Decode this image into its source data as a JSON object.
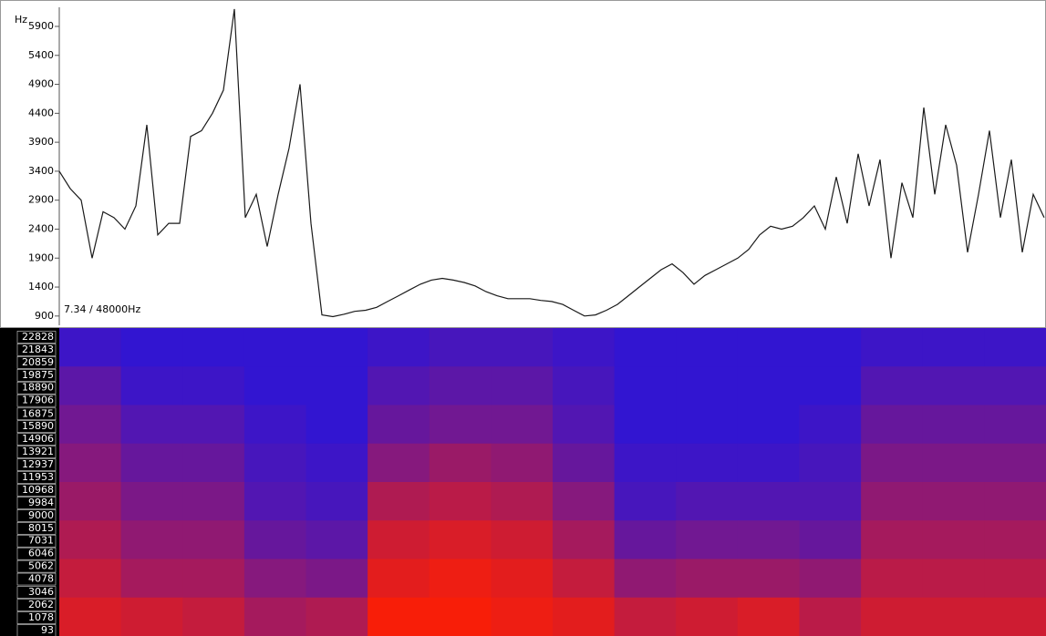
{
  "chart_data": [
    {
      "type": "line",
      "y_label": "Hz",
      "annotation": "7.34 / 48000Hz",
      "color": "#1a1a1a",
      "categories": [
        null,
        null,
        null,
        null,
        null,
        null,
        null,
        null,
        null,
        null,
        null,
        null,
        null,
        null,
        null,
        null,
        null,
        null,
        null,
        null,
        null,
        null,
        null,
        null,
        null,
        null,
        null,
        null,
        null,
        null,
        null,
        null,
        null,
        null,
        null,
        null,
        null,
        null,
        null,
        null,
        null,
        null,
        null,
        null,
        null,
        null,
        null,
        null,
        null,
        null,
        null,
        null,
        null,
        null,
        null,
        null,
        null,
        null,
        null,
        null,
        null,
        null,
        null,
        null,
        null,
        null,
        null,
        null,
        null,
        null,
        null,
        null,
        null,
        null,
        null,
        null,
        null,
        null,
        null,
        null,
        null,
        null,
        null,
        null,
        null,
        null,
        null,
        null,
        null,
        null,
        null
      ],
      "values": [
        3400,
        3100,
        2900,
        1900,
        2700,
        2600,
        2400,
        2800,
        4200,
        2300,
        2500,
        2500,
        4000,
        4100,
        4400,
        4800,
        6200,
        2600,
        3000,
        2100,
        3000,
        3800,
        4900,
        2500,
        920,
        890,
        930,
        980,
        1000,
        1050,
        1150,
        1250,
        1350,
        1450,
        1520,
        1550,
        1520,
        1480,
        1420,
        1320,
        1250,
        1200,
        1200,
        1200,
        1170,
        1150,
        1100,
        1000,
        900,
        920,
        1000,
        1100,
        1250,
        1400,
        1550,
        1700,
        1800,
        1650,
        1450,
        1600,
        1700,
        1800,
        1900,
        2050,
        2300,
        2450,
        2400,
        2450,
        2600,
        2800,
        2400,
        3300,
        2500,
        3700,
        2800,
        3600,
        1900,
        3200,
        2600,
        4500,
        3000,
        4200,
        3500,
        2000,
        3000,
        4100,
        2600,
        3600,
        2000,
        3000,
        2600
      ],
      "ylim": [
        740,
        6230
      ],
      "yticks": [
        900,
        1400,
        1900,
        2400,
        2900,
        3400,
        3900,
        4400,
        4900,
        5400,
        5900
      ]
    },
    {
      "type": "heatmap",
      "colors": [
        "#2814dc",
        "#f81e08"
      ],
      "ylim": [
        -330,
        23530
      ],
      "yticks": [
        22828,
        21843,
        20859,
        19875,
        18890,
        17906,
        16875,
        15890,
        14906,
        13921,
        12937,
        11953,
        10968,
        9984,
        9000,
        8015,
        7031,
        6046,
        5062,
        4078,
        3046,
        2062,
        1078,
        93
      ],
      "values": [
        [
          0.1,
          0.05,
          0.05,
          0.05,
          0.05,
          0.1,
          0.15,
          0.15,
          0.1,
          0.05,
          0.05,
          0.05,
          0.05,
          0.1,
          0.1,
          0.1
        ],
        [
          0.25,
          0.1,
          0.1,
          0.05,
          0.05,
          0.2,
          0.25,
          0.25,
          0.15,
          0.05,
          0.05,
          0.05,
          0.05,
          0.2,
          0.2,
          0.2
        ],
        [
          0.35,
          0.2,
          0.2,
          0.1,
          0.05,
          0.3,
          0.35,
          0.35,
          0.2,
          0.05,
          0.05,
          0.05,
          0.1,
          0.3,
          0.3,
          0.3
        ],
        [
          0.45,
          0.3,
          0.3,
          0.15,
          0.1,
          0.45,
          0.55,
          0.5,
          0.3,
          0.1,
          0.1,
          0.1,
          0.15,
          0.4,
          0.4,
          0.4
        ],
        [
          0.55,
          0.4,
          0.4,
          0.2,
          0.15,
          0.65,
          0.7,
          0.65,
          0.45,
          0.15,
          0.2,
          0.2,
          0.2,
          0.5,
          0.5,
          0.5
        ],
        [
          0.65,
          0.5,
          0.5,
          0.3,
          0.25,
          0.8,
          0.85,
          0.8,
          0.6,
          0.3,
          0.35,
          0.35,
          0.3,
          0.6,
          0.6,
          0.6
        ],
        [
          0.75,
          0.6,
          0.6,
          0.45,
          0.4,
          0.9,
          0.95,
          0.9,
          0.75,
          0.5,
          0.55,
          0.55,
          0.5,
          0.7,
          0.7,
          0.7
        ],
        [
          0.85,
          0.8,
          0.75,
          0.6,
          0.65,
          1,
          1,
          0.95,
          0.9,
          0.75,
          0.8,
          0.85,
          0.7,
          0.8,
          0.8,
          0.8
        ]
      ]
    }
  ]
}
